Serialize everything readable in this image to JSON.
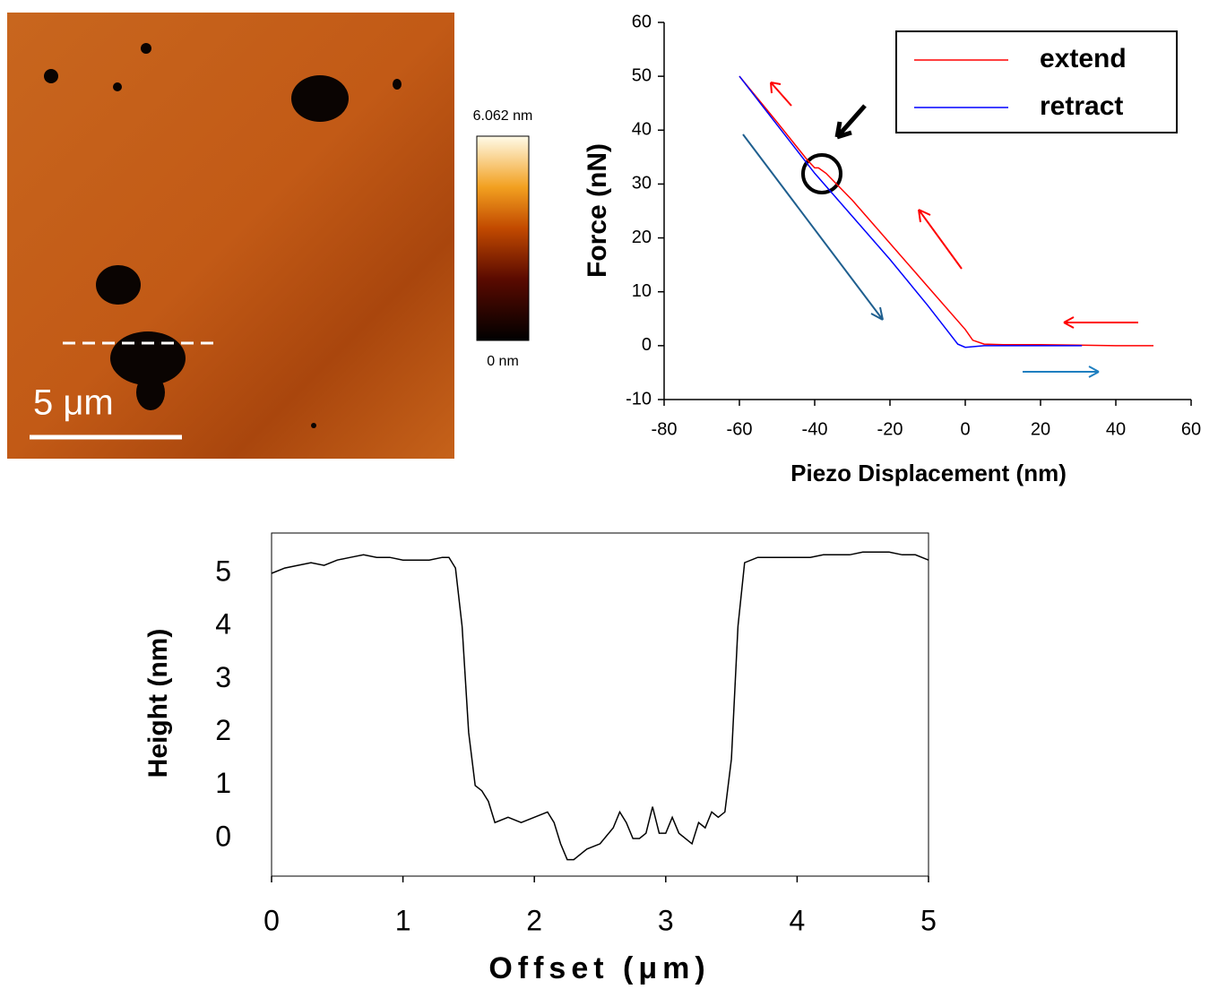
{
  "image_panel": {
    "colorbar_max_label": "6.062 nm",
    "colorbar_min_label": "0 nm",
    "scale_bar_label": "5 μm"
  },
  "chart_data": [
    {
      "type": "line",
      "xlabel": "Piezo Displacement (nm)",
      "ylabel": "Force (nN)",
      "xlim": [
        -80,
        60
      ],
      "xticks": [
        -80,
        -60,
        -40,
        -20,
        0,
        20,
        40,
        60
      ],
      "ylim": [
        -10,
        60
      ],
      "yticks": [
        -10,
        0,
        10,
        20,
        30,
        40,
        50,
        60
      ],
      "grid": false,
      "legend": "upper right",
      "series": [
        {
          "name": "extend",
          "color": "#ff0000",
          "x": [
            -60,
            -50,
            -42,
            -40,
            -39,
            -37,
            -30,
            -20,
            -10,
            0,
            2,
            5,
            10,
            20,
            30,
            40,
            50
          ],
          "values": [
            50,
            41.5,
            34.5,
            33,
            33,
            32,
            27,
            19,
            11,
            3,
            1,
            0.3,
            0.2,
            0.2,
            0.1,
            0,
            0
          ]
        },
        {
          "name": "retract",
          "color": "#0000ff",
          "x": [
            -60,
            -50,
            -40,
            -30,
            -20,
            -10,
            -5,
            -2,
            0,
            5,
            10,
            20,
            31
          ],
          "values": [
            50,
            41,
            32,
            24,
            16,
            7.5,
            3,
            0.3,
            -0.3,
            0,
            0,
            0,
            0
          ]
        }
      ]
    },
    {
      "type": "line",
      "xlabel": "Offset (μm)",
      "ylabel": "Height (nm)",
      "xlim": [
        0,
        5
      ],
      "xticks": [
        0,
        1,
        2,
        3,
        4,
        5
      ],
      "ylim": [
        -0.71,
        5.76
      ],
      "yticks": [
        0,
        1,
        2,
        3,
        4,
        5
      ],
      "grid": false,
      "color": "#000000",
      "x": [
        0,
        0.1,
        0.2,
        0.3,
        0.4,
        0.5,
        0.6,
        0.7,
        0.8,
        0.9,
        1.0,
        1.1,
        1.2,
        1.3,
        1.35,
        1.4,
        1.45,
        1.5,
        1.55,
        1.6,
        1.65,
        1.7,
        1.8,
        1.9,
        2.0,
        2.1,
        2.15,
        2.2,
        2.25,
        2.3,
        2.4,
        2.5,
        2.6,
        2.65,
        2.7,
        2.75,
        2.8,
        2.85,
        2.9,
        2.95,
        3.0,
        3.05,
        3.1,
        3.2,
        3.25,
        3.3,
        3.35,
        3.4,
        3.45,
        3.5,
        3.55,
        3.6,
        3.7,
        3.8,
        3.9,
        4.0,
        4.1,
        4.2,
        4.3,
        4.4,
        4.5,
        4.6,
        4.7,
        4.8,
        4.9,
        5.0
      ],
      "values": [
        5.0,
        5.1,
        5.15,
        5.2,
        5.15,
        5.25,
        5.3,
        5.35,
        5.3,
        5.3,
        5.25,
        5.25,
        5.25,
        5.3,
        5.3,
        5.1,
        4.0,
        2.0,
        1.0,
        0.9,
        0.7,
        0.3,
        0.4,
        0.3,
        0.4,
        0.5,
        0.3,
        -0.1,
        -0.4,
        -0.4,
        -0.2,
        -0.1,
        0.2,
        0.5,
        0.3,
        0.0,
        0.0,
        0.1,
        0.6,
        0.1,
        0.1,
        0.4,
        0.1,
        -0.1,
        0.3,
        0.2,
        0.5,
        0.4,
        0.5,
        1.5,
        4.0,
        5.2,
        5.3,
        5.3,
        5.3,
        5.3,
        5.3,
        5.35,
        5.35,
        5.35,
        5.4,
        5.4,
        5.4,
        5.35,
        5.35,
        5.25
      ]
    }
  ]
}
